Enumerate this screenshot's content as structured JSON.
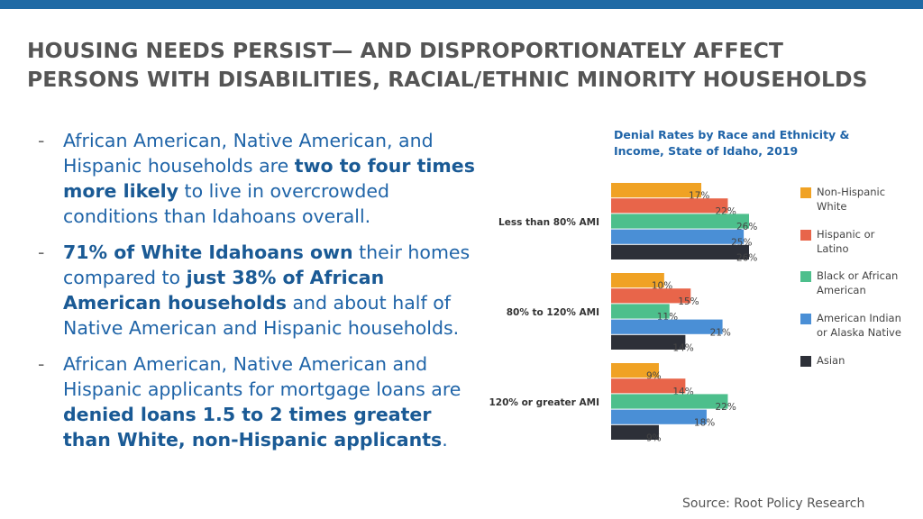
{
  "slide": {
    "title_line1": "HOUSING NEEDS PERSIST— AND DISPROPORTIONATELY AFFECT",
    "title_line2": "PERSONS WITH DISABILITIES, RACIAL/ETHNIC MINORITY HOUSEHOLDS",
    "bullet_dash": "-",
    "bullets": [
      {
        "t1": "African American, Native American, and Hispanic households are ",
        "b1": "two to four times more likely",
        "t2": " to live in overcrowded conditions than Idahoans overall."
      },
      {
        "b1": "71% of White Idahoans own",
        "t1": " their homes compared to ",
        "b2": "just 38% of African American households",
        "t2": " and about half of Native American and Hispanic households."
      },
      {
        "t1": "African American, Native American and Hispanic applicants for mortgage loans are ",
        "b1": "denied loans 1.5 to 2 times greater than White, non-Hispanic applicants",
        "t2": "."
      }
    ],
    "source": "Source: Root Policy Research"
  },
  "chart_data": {
    "type": "bar",
    "orientation": "horizontal",
    "title_line1": "Denial Rates by Race and Ethnicity &",
    "title_line2": "Income, State of Idaho, 2019",
    "categories": [
      "Less than 80% AMI",
      "80% to 120% AMI",
      "120% or greater AMI"
    ],
    "series": [
      {
        "name": "Non-Hispanic White",
        "legend_lines": [
          "Non-Hispanic",
          "White"
        ],
        "color": "#f0a224",
        "values": [
          17,
          10,
          9
        ]
      },
      {
        "name": "Hispanic or Latino",
        "legend_lines": [
          "Hispanic or",
          "Latino"
        ],
        "color": "#e8654a",
        "values": [
          22,
          15,
          14
        ]
      },
      {
        "name": "Black or African American",
        "legend_lines": [
          "Black or African",
          "American"
        ],
        "color": "#4dbf8c",
        "values": [
          26,
          11,
          22
        ]
      },
      {
        "name": "American Indian or Alaska Native",
        "legend_lines": [
          "American Indian",
          "or Alaska Native"
        ],
        "color": "#4a8fd6",
        "values": [
          25,
          21,
          18
        ]
      },
      {
        "name": "Asian",
        "legend_lines": [
          "Asian"
        ],
        "color": "#2d3038",
        "values": [
          26,
          14,
          9
        ]
      }
    ],
    "value_suffix": "%",
    "xlim": [
      0,
      26
    ]
  }
}
